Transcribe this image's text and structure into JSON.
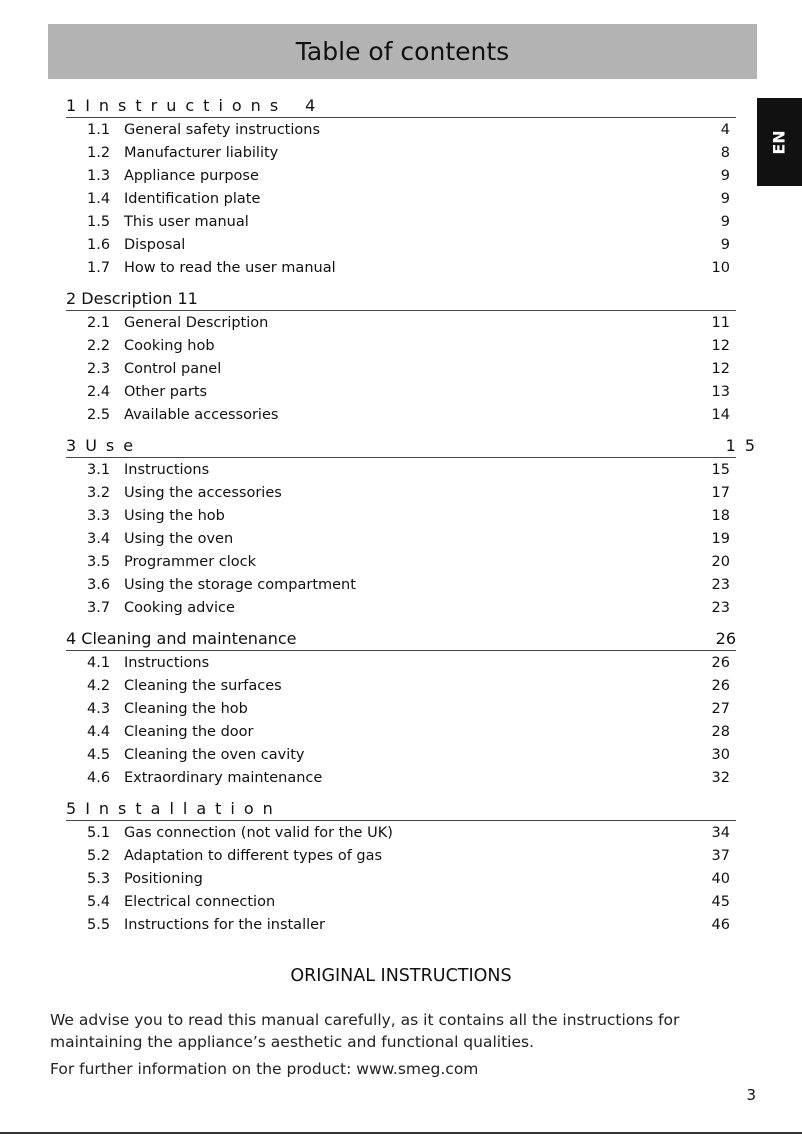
{
  "title": "Table of contents",
  "language_tab": "EN",
  "sections": [
    {
      "number": "1",
      "title": "Instructions",
      "page": "4",
      "spaced": true,
      "items": [
        {
          "number": "1.1",
          "title": "General safety instructions",
          "page": "4"
        },
        {
          "number": "1.2",
          "title": "Manufacturer liability",
          "page": "8"
        },
        {
          "number": "1.3",
          "title": "Appliance purpose",
          "page": "9"
        },
        {
          "number": "1.4",
          "title": "Identification plate",
          "page": "9"
        },
        {
          "number": "1.5",
          "title": "This user manual",
          "page": "9"
        },
        {
          "number": "1.6",
          "title": "Disposal",
          "page": "9"
        },
        {
          "number": "1.7",
          "title": "How to read the user manual",
          "page": "10"
        }
      ]
    },
    {
      "number": "2",
      "title": "Description",
      "page": "11",
      "spaced": false,
      "inline_page": true,
      "items": [
        {
          "number": "2.1",
          "title": "General Description",
          "page": "11"
        },
        {
          "number": "2.2",
          "title": "Cooking hob",
          "page": "12"
        },
        {
          "number": "2.3",
          "title": "Control panel",
          "page": "12"
        },
        {
          "number": "2.4",
          "title": "Other parts",
          "page": "13"
        },
        {
          "number": "2.5",
          "title": "Available accessories",
          "page": "14"
        }
      ]
    },
    {
      "number": "3",
      "title": "Use",
      "page": "15",
      "spaced": true,
      "overflow": true,
      "items": [
        {
          "number": "3.1",
          "title": "Instructions",
          "page": "15"
        },
        {
          "number": "3.2",
          "title": "Using the accessories",
          "page": "17"
        },
        {
          "number": "3.3",
          "title": "Using the hob",
          "page": "18"
        },
        {
          "number": "3.4",
          "title": "Using the oven",
          "page": "19"
        },
        {
          "number": "3.5",
          "title": "Programmer clock",
          "page": "20"
        },
        {
          "number": "3.6",
          "title": "Using the storage compartment",
          "page": "23"
        },
        {
          "number": "3.7",
          "title": "Cooking advice",
          "page": "23"
        }
      ]
    },
    {
      "number": "4",
      "title": "Cleaning and maintenance",
      "page": "26",
      "spaced": false,
      "items": [
        {
          "number": "4.1",
          "title": "Instructions",
          "page": "26"
        },
        {
          "number": "4.2",
          "title": "Cleaning the surfaces",
          "page": "26"
        },
        {
          "number": "4.3",
          "title": "Cleaning the hob",
          "page": "27"
        },
        {
          "number": "4.4",
          "title": "Cleaning the door",
          "page": "28"
        },
        {
          "number": "4.5",
          "title": "Cleaning the oven cavity",
          "page": "30"
        },
        {
          "number": "4.6",
          "title": "Extraordinary maintenance",
          "page": "32"
        }
      ]
    },
    {
      "number": "5",
      "title": "Installation",
      "page": "",
      "spaced": true,
      "items": [
        {
          "number": "5.1",
          "title": "Gas connection (not valid for the UK)",
          "page": "34"
        },
        {
          "number": "5.2",
          "title": "Adaptation to different types of gas",
          "page": "37"
        },
        {
          "number": "5.3",
          "title": "Positioning",
          "page": "40"
        },
        {
          "number": "5.4",
          "title": "Electrical connection",
          "page": "45"
        },
        {
          "number": "5.5",
          "title": "Instructions for the installer",
          "page": "46"
        }
      ]
    }
  ],
  "original_instructions": "ORIGINAL INSTRUCTIONS",
  "advice": "We advise you to read this manual carefully, as it contains all the instructions for maintaining the appliance’s aesthetic and functional qualities.",
  "further_info": "For further information on the product: www.smeg.com",
  "page_number": "3"
}
